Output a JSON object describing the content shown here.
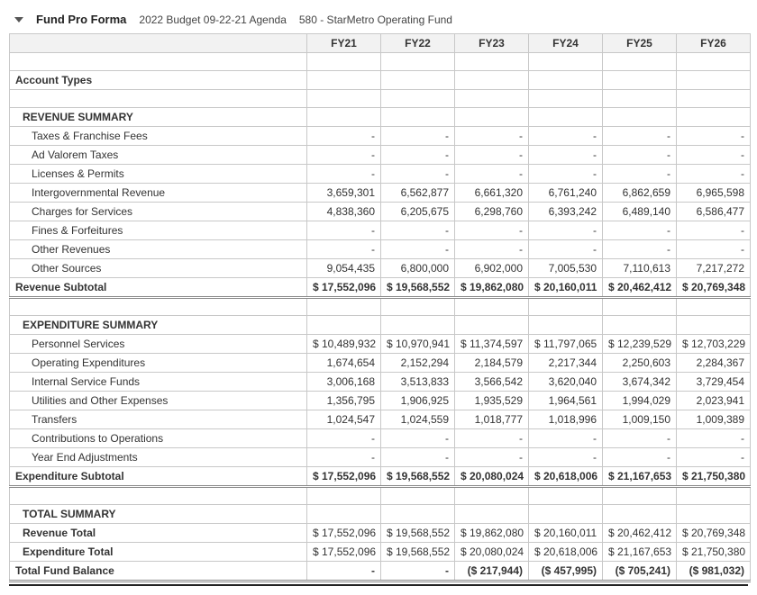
{
  "header": {
    "title": "Fund Pro Forma",
    "budget": "2022 Budget 09-22-21 Agenda",
    "fund": "580 - StarMetro Operating Fund"
  },
  "columns": [
    "FY21",
    "FY22",
    "FY23",
    "FY24",
    "FY25",
    "FY26"
  ],
  "section_account_types": "Account Types",
  "revenue": {
    "heading": "REVENUE SUMMARY",
    "rows": [
      {
        "label": "Taxes & Franchise Fees",
        "vals": [
          "-",
          "-",
          "-",
          "-",
          "-",
          "-"
        ]
      },
      {
        "label": "Ad Valorem Taxes",
        "vals": [
          "-",
          "-",
          "-",
          "-",
          "-",
          "-"
        ]
      },
      {
        "label": "Licenses & Permits",
        "vals": [
          "-",
          "-",
          "-",
          "-",
          "-",
          "-"
        ]
      },
      {
        "label": "Intergovernmental Revenue",
        "vals": [
          "3,659,301",
          "6,562,877",
          "6,661,320",
          "6,761,240",
          "6,862,659",
          "6,965,598"
        ]
      },
      {
        "label": "Charges for Services",
        "vals": [
          "4,838,360",
          "6,205,675",
          "6,298,760",
          "6,393,242",
          "6,489,140",
          "6,586,477"
        ]
      },
      {
        "label": "Fines & Forfeitures",
        "vals": [
          "-",
          "-",
          "-",
          "-",
          "-",
          "-"
        ]
      },
      {
        "label": "Other Revenues",
        "vals": [
          "-",
          "-",
          "-",
          "-",
          "-",
          "-"
        ]
      },
      {
        "label": "Other Sources",
        "vals": [
          "9,054,435",
          "6,800,000",
          "6,902,000",
          "7,005,530",
          "7,110,613",
          "7,217,272"
        ]
      }
    ],
    "subtotal_label": "Revenue Subtotal",
    "subtotal": [
      "$ 17,552,096",
      "$ 19,568,552",
      "$ 19,862,080",
      "$ 20,160,011",
      "$ 20,462,412",
      "$ 20,769,348"
    ]
  },
  "expenditure": {
    "heading": "EXPENDITURE SUMMARY",
    "rows": [
      {
        "label": "Personnel Services",
        "vals": [
          "$ 10,489,932",
          "$ 10,970,941",
          "$ 11,374,597",
          "$ 11,797,065",
          "$ 12,239,529",
          "$ 12,703,229"
        ]
      },
      {
        "label": "Operating Expenditures",
        "vals": [
          "1,674,654",
          "2,152,294",
          "2,184,579",
          "2,217,344",
          "2,250,603",
          "2,284,367"
        ]
      },
      {
        "label": "Internal Service Funds",
        "vals": [
          "3,006,168",
          "3,513,833",
          "3,566,542",
          "3,620,040",
          "3,674,342",
          "3,729,454"
        ]
      },
      {
        "label": "Utilities and Other Expenses",
        "vals": [
          "1,356,795",
          "1,906,925",
          "1,935,529",
          "1,964,561",
          "1,994,029",
          "2,023,941"
        ]
      },
      {
        "label": "Transfers",
        "vals": [
          "1,024,547",
          "1,024,559",
          "1,018,777",
          "1,018,996",
          "1,009,150",
          "1,009,389"
        ]
      },
      {
        "label": "Contributions to Operations",
        "vals": [
          "-",
          "-",
          "-",
          "-",
          "-",
          "-"
        ]
      },
      {
        "label": "Year End Adjustments",
        "vals": [
          "-",
          "-",
          "-",
          "-",
          "-",
          "-"
        ]
      }
    ],
    "subtotal_label": "Expenditure Subtotal",
    "subtotal": [
      "$ 17,552,096",
      "$ 19,568,552",
      "$ 20,080,024",
      "$ 20,618,006",
      "$ 21,167,653",
      "$ 21,750,380"
    ]
  },
  "totals": {
    "heading": "TOTAL SUMMARY",
    "rev_label": "Revenue Total",
    "rev": [
      "$ 17,552,096",
      "$ 19,568,552",
      "$ 19,862,080",
      "$ 20,160,011",
      "$ 20,462,412",
      "$ 20,769,348"
    ],
    "exp_label": "Expenditure Total",
    "exp": [
      "$ 17,552,096",
      "$ 19,568,552",
      "$ 20,080,024",
      "$ 20,618,006",
      "$ 21,167,653",
      "$ 21,750,380"
    ],
    "bal_label": "Total Fund Balance",
    "bal": [
      "-",
      "-",
      "($ 217,944)",
      "($ 457,995)",
      "($ 705,241)",
      "($ 981,032)"
    ]
  }
}
